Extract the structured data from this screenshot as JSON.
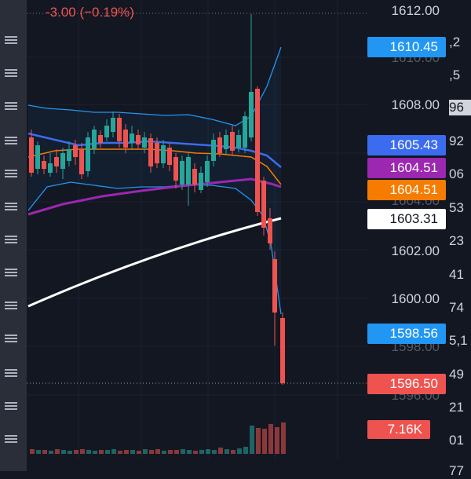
{
  "header": {
    "change_text": "-3.00 (−0.19%)"
  },
  "price_axis": {
    "ticks": [
      "1612.00",
      "1610.00",
      "1608.00",
      "1604.00",
      "1602.00",
      "1600.00",
      "1598.00",
      "1596.00"
    ]
  },
  "tags": {
    "upper_band": "1610.45",
    "ema_blue": "1605.43",
    "ma_purple": "1604.51",
    "ma_orange": "1604.51",
    "ma_white": "1603.31",
    "lower_band": "1598.56",
    "last_price": "1596.50",
    "volume": "7.16K"
  },
  "right_column_fragments": [
    ",2",
    ",5",
    "96",
    "92",
    "06",
    "53",
    "23",
    "41",
    "74",
    "5,1",
    "49",
    "21",
    "01",
    "77"
  ],
  "colors": {
    "background": "#131722",
    "up": "#26a69a",
    "down": "#ef5350",
    "bollinger": "#2196f3",
    "ema_blue": "#3b6cf0",
    "ma_orange": "#f57c00",
    "ma_purple": "#9c27b0",
    "ma_white": "#ffffff"
  }
}
